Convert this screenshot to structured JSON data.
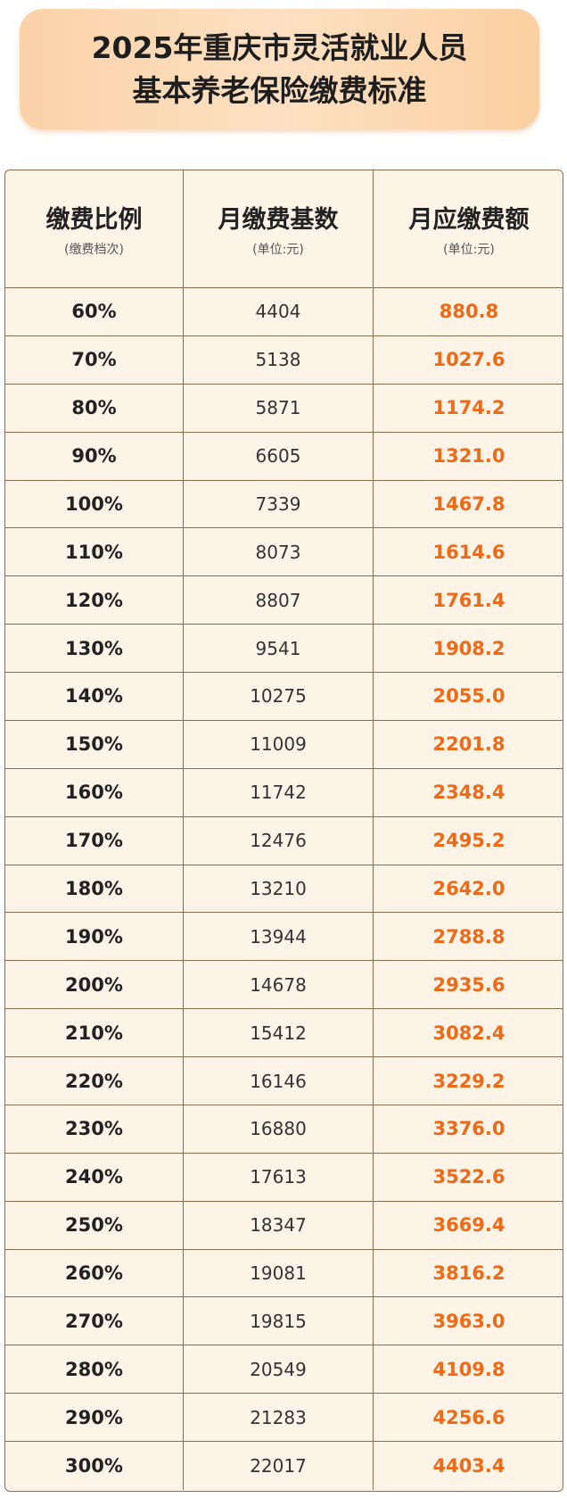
{
  "header": {
    "title": [
      "2025年重庆市灵活就业人员",
      "基本养老保险缴费标准"
    ]
  },
  "table": {
    "columns": [
      {
        "label": "缴费比例",
        "unit": "(缴费档次)"
      },
      {
        "label": "月缴费基数",
        "unit": "(单位:元)"
      },
      {
        "label": "月应缴费额",
        "unit": "(单位:元)"
      }
    ],
    "rows": [
      [
        "60%",
        "4404",
        "880.8"
      ],
      [
        "70%",
        "5138",
        "1027.6"
      ],
      [
        "80%",
        "5871",
        "1174.2"
      ],
      [
        "90%",
        "6605",
        "1321.0"
      ],
      [
        "100%",
        "7339",
        "1467.8"
      ],
      [
        "110%",
        "8073",
        "1614.6"
      ],
      [
        "120%",
        "8807",
        "1761.4"
      ],
      [
        "130%",
        "9541",
        "1908.2"
      ],
      [
        "140%",
        "10275",
        "2055.0"
      ],
      [
        "150%",
        "11009",
        "2201.8"
      ],
      [
        "160%",
        "11742",
        "2348.4"
      ],
      [
        "170%",
        "12476",
        "2495.2"
      ],
      [
        "180%",
        "13210",
        "2642.0"
      ],
      [
        "190%",
        "13944",
        "2788.8"
      ],
      [
        "200%",
        "14678",
        "2935.6"
      ],
      [
        "210%",
        "15412",
        "3082.4"
      ],
      [
        "220%",
        "16146",
        "3229.2"
      ],
      [
        "230%",
        "16880",
        "3376.0"
      ],
      [
        "240%",
        "17613",
        "3522.6"
      ],
      [
        "250%",
        "18347",
        "3669.4"
      ],
      [
        "260%",
        "19081",
        "3816.2"
      ],
      [
        "270%",
        "19815",
        "3963.0"
      ],
      [
        "280%",
        "20549",
        "4109.8"
      ],
      [
        "290%",
        "21283",
        "4256.6"
      ],
      [
        "300%",
        "22017",
        "4403.4"
      ]
    ]
  }
}
